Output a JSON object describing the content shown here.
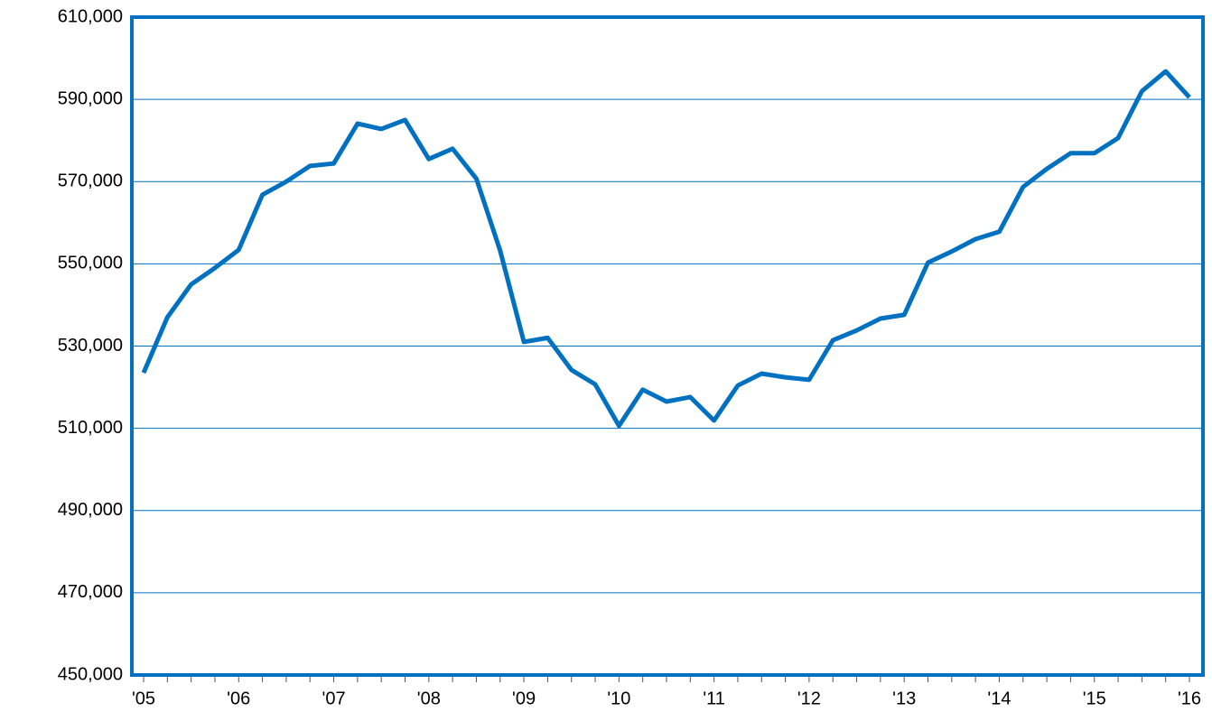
{
  "chart_data": {
    "type": "line",
    "categories": [
      "'05",
      null,
      null,
      null,
      "'06",
      null,
      null,
      null,
      "'07",
      null,
      null,
      null,
      "'08",
      null,
      null,
      null,
      "'09",
      null,
      null,
      null,
      "'10",
      null,
      null,
      null,
      "'11",
      null,
      null,
      null,
      "'12",
      null,
      null,
      null,
      "'13",
      null,
      null,
      null,
      "'14",
      null,
      null,
      null,
      "'15",
      null,
      null,
      null,
      "'16"
    ],
    "series": [
      {
        "color": "#0070c0",
        "values": [
          523500,
          537000,
          545000,
          549000,
          553400,
          566800,
          570000,
          573800,
          574400,
          584100,
          582800,
          585000,
          575500,
          578000,
          570700,
          553200,
          531000,
          532000,
          524200,
          520700,
          510600,
          519400,
          516500,
          517600,
          511900,
          520400,
          523300,
          522400,
          521800,
          531400,
          533800,
          536700,
          537600,
          550300,
          553000,
          556000,
          557800,
          568700,
          573100,
          576900,
          576900,
          580600,
          592000,
          596800,
          590500
        ]
      }
    ],
    "ylim": [
      450000,
      610000
    ],
    "yticks": [
      {
        "value": 450000,
        "label": "450,000"
      },
      {
        "value": 470000,
        "label": "470,000"
      },
      {
        "value": 490000,
        "label": "490,000"
      },
      {
        "value": 510000,
        "label": "510,000"
      },
      {
        "value": 530000,
        "label": "530,000"
      },
      {
        "value": 550000,
        "label": "550,000"
      },
      {
        "value": 570000,
        "label": "570,000"
      },
      {
        "value": 590000,
        "label": "590,000"
      },
      {
        "value": 610000,
        "label": "610,000"
      }
    ],
    "grid": true
  }
}
